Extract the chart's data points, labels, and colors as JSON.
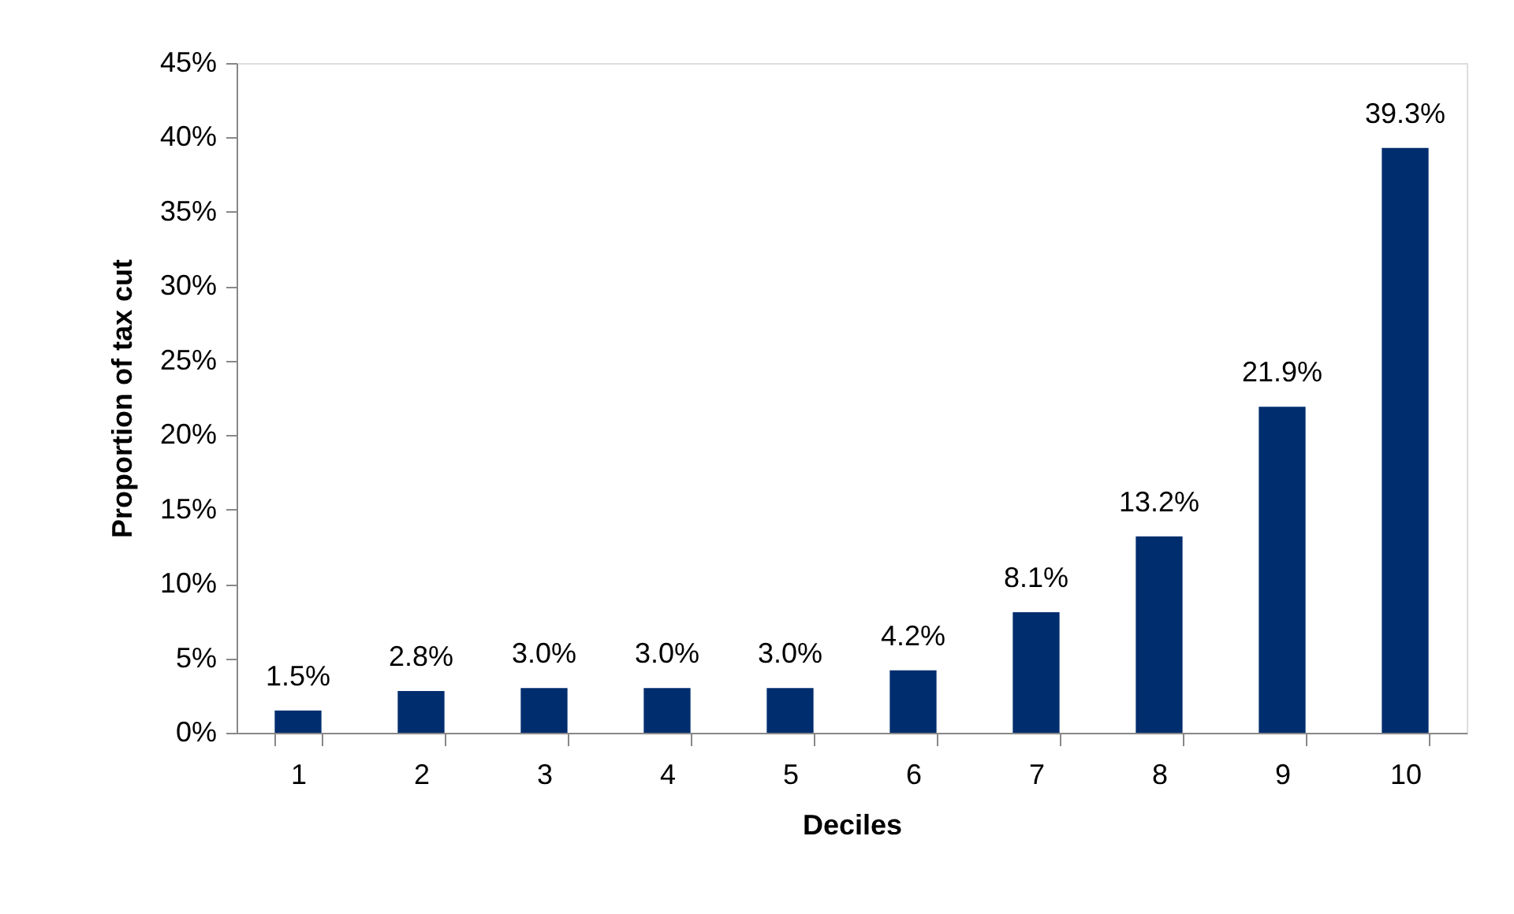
{
  "chart_data": {
    "type": "bar",
    "xlabel": "Deciles",
    "ylabel": "Proportion of tax cut",
    "categories": [
      "1",
      "2",
      "3",
      "4",
      "5",
      "6",
      "7",
      "8",
      "9",
      "10"
    ],
    "values": [
      1.5,
      2.8,
      3.0,
      3.0,
      3.0,
      4.2,
      8.1,
      13.2,
      21.9,
      39.3
    ],
    "value_labels": [
      "1.5%",
      "2.8%",
      "3.0%",
      "3.0%",
      "3.0%",
      "4.2%",
      "8.1%",
      "13.2%",
      "21.9%",
      "39.3%"
    ],
    "color": "#002d6e",
    "ylim": [
      0,
      45
    ],
    "yticks": [
      {
        "value": 0,
        "label": "0%"
      },
      {
        "value": 5,
        "label": "5%"
      },
      {
        "value": 10,
        "label": "10%"
      },
      {
        "value": 15,
        "label": "15%"
      },
      {
        "value": 20,
        "label": "20%"
      },
      {
        "value": 25,
        "label": "25%"
      },
      {
        "value": 30,
        "label": "30%"
      },
      {
        "value": 35,
        "label": "35%"
      },
      {
        "value": 40,
        "label": "40%"
      },
      {
        "value": 45,
        "label": "45%"
      }
    ],
    "grid": false
  }
}
